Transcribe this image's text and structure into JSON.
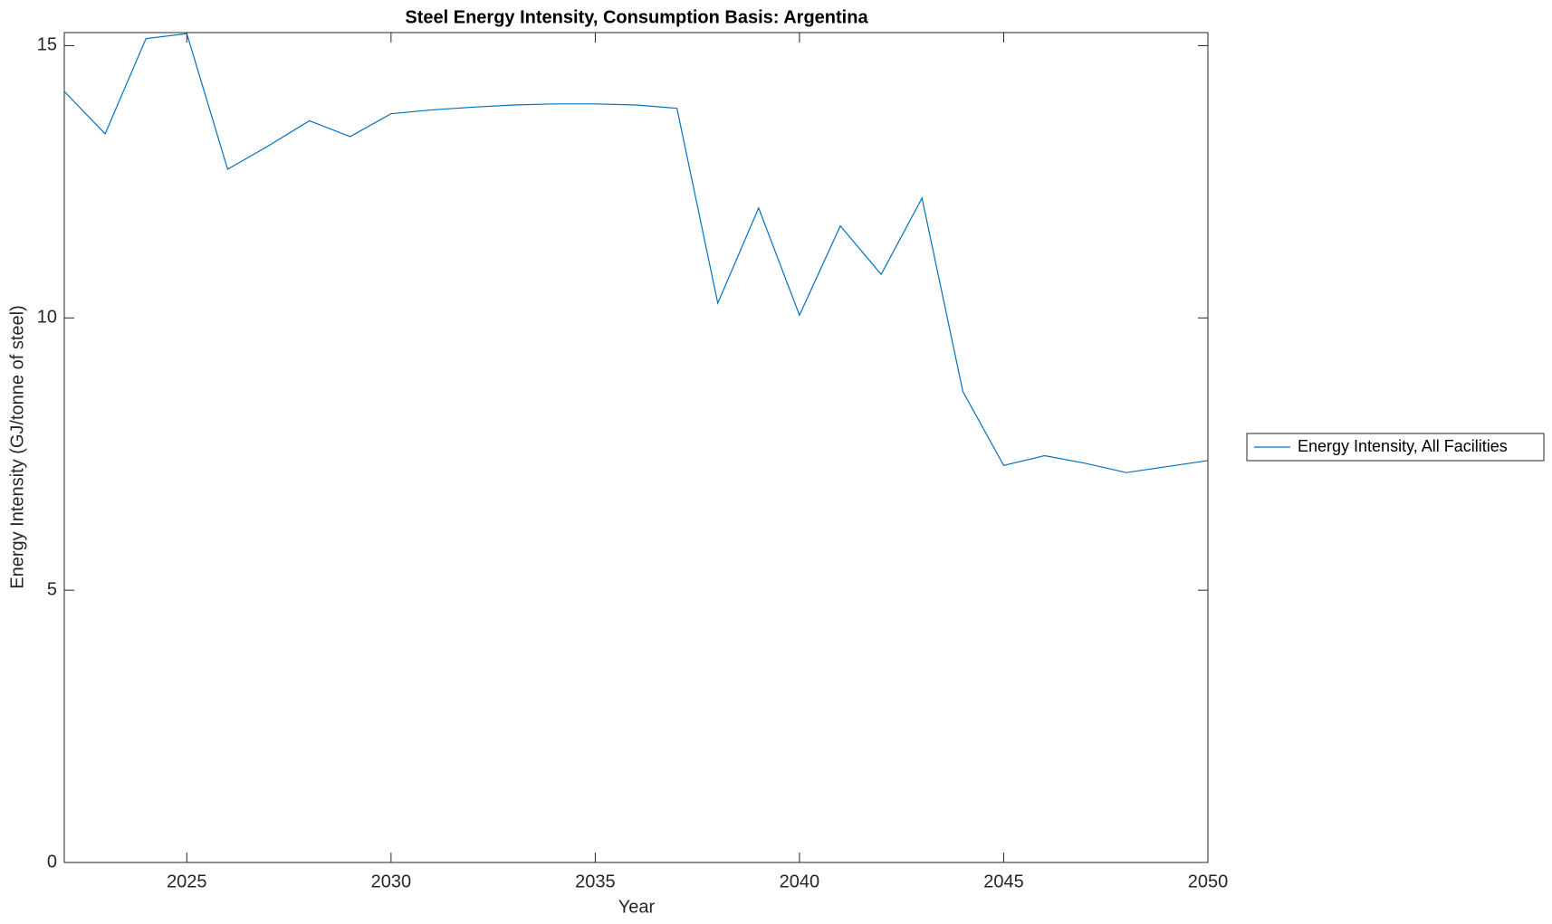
{
  "chart_data": {
    "type": "line",
    "title": "Steel Energy Intensity, Consumption Basis: Argentina",
    "x_label": "Year",
    "y_label": "Energy Intensity (GJ/tonne of steel)",
    "x": [
      2022,
      2023,
      2024,
      2025,
      2026,
      2027,
      2028,
      2029,
      2030,
      2031,
      2032,
      2033,
      2034,
      2035,
      2036,
      2037,
      2038,
      2039,
      2040,
      2041,
      2042,
      2043,
      2044,
      2045,
      2046,
      2047,
      2048,
      2049,
      2050
    ],
    "series": [
      {
        "name": "Energy Intensity, All Facilities",
        "color": "#0072bd",
        "values": [
          14.16,
          13.38,
          15.13,
          15.22,
          12.73,
          13.16,
          13.62,
          13.33,
          13.75,
          13.82,
          13.87,
          13.91,
          13.93,
          13.93,
          13.91,
          13.85,
          10.27,
          12.02,
          10.05,
          11.69,
          10.8,
          12.2,
          8.65,
          7.29,
          7.47,
          7.33,
          7.16,
          7.27,
          7.38
        ]
      }
    ],
    "xlim": [
      2022,
      2050
    ],
    "xticks": [
      2025,
      2030,
      2035,
      2040,
      2045,
      2050
    ],
    "ylim": [
      0,
      15.24
    ],
    "yticks": [
      0,
      5,
      10,
      15
    ],
    "legend": "outside-right"
  }
}
